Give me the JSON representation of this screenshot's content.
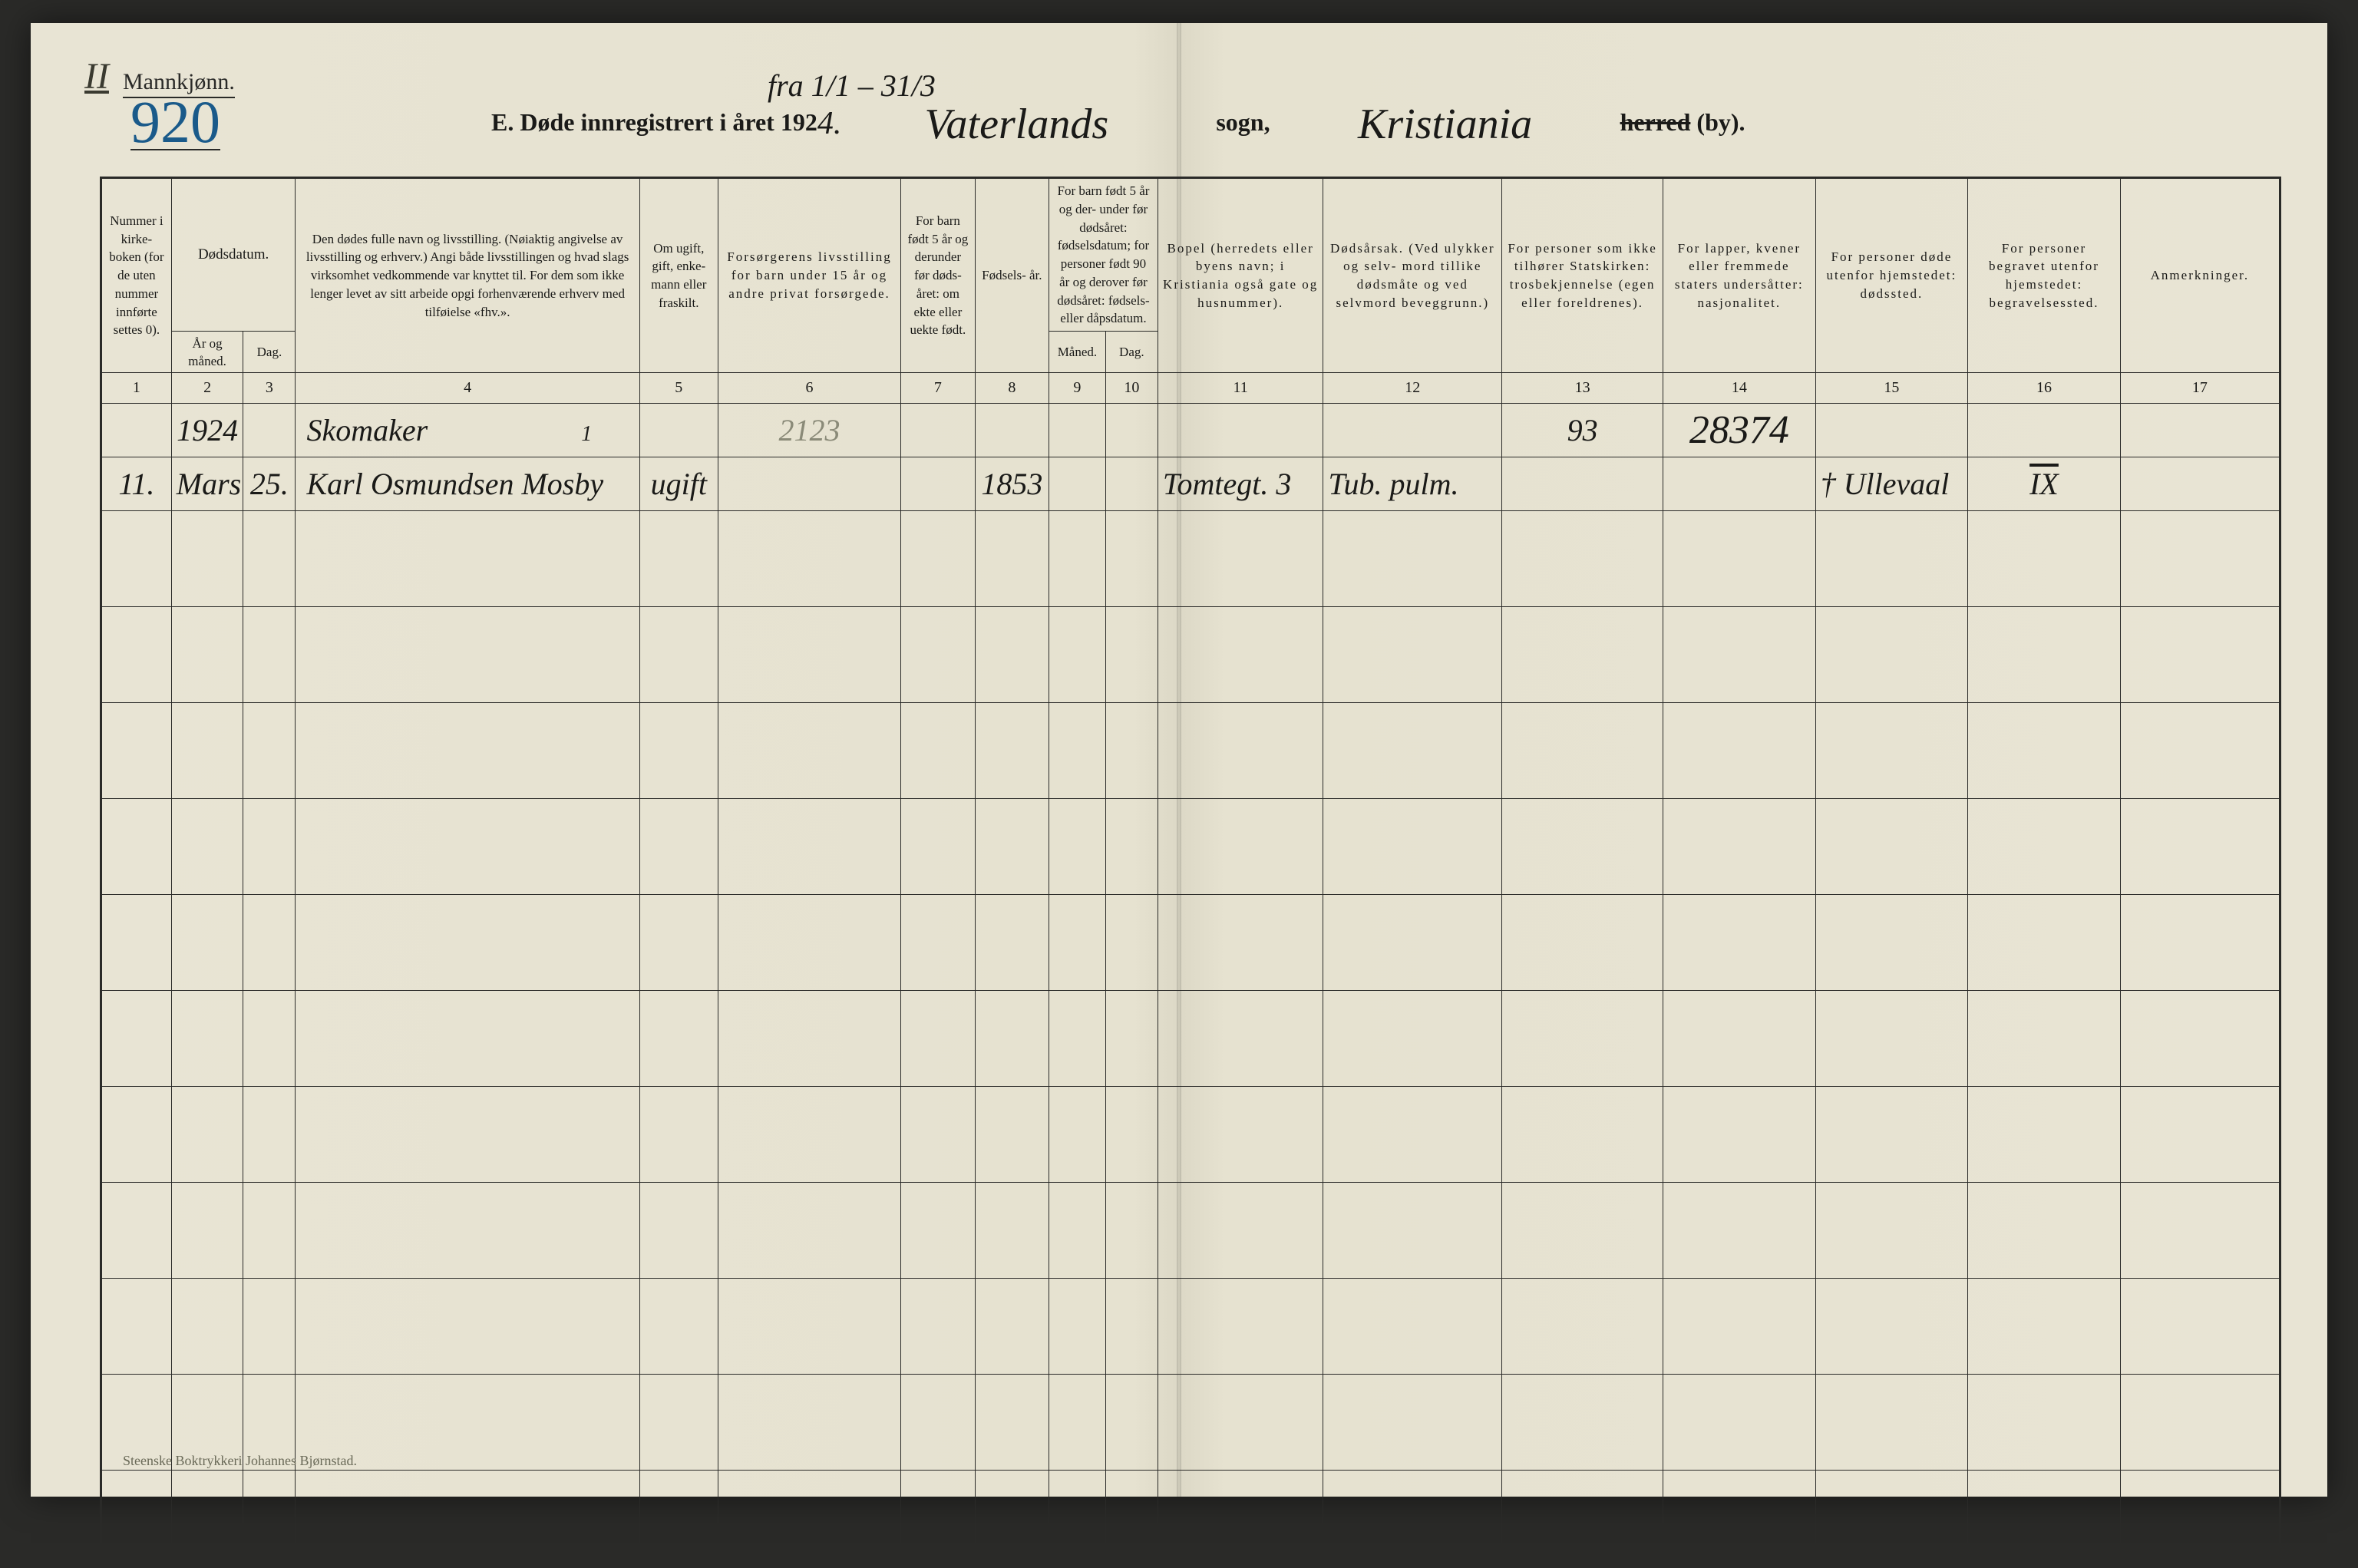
{
  "corner_mark": "II",
  "header": {
    "gender_label": "Mannkjønn.",
    "big_number": "920",
    "title_prefix": "E.  Døde innregistrert i året 192",
    "year_suffix": "4.",
    "date_range": "fra 1/1 – 31/3",
    "parish_hand": "Vaterlands",
    "sogn_label": "sogn,",
    "city_hand": "Kristiania",
    "herred_strike": "herred",
    "by_suffix": "(by)."
  },
  "columns": {
    "c1": "Nummer i kirke- boken (for de uten nummer innførte settes 0).",
    "c2": "Dødsdatum.",
    "c2a": "År og måned.",
    "c2b": "Dag.",
    "c4": "Den dødes fulle navn og livsstilling.\n(Nøiaktig angivelse av livsstilling og erhverv.)\nAngi både livsstillingen og hvad slags virksomhet vedkommende var knyttet til.\nFor dem som ikke lenger levet av sitt arbeide opgi forhenværende erhverv med tilføielse «fhv.».",
    "c5": "Om ugift, gift, enke- mann eller fraskilt.",
    "c6": "Forsørgerens\nlivsstilling\nfor barn under 15 år og andre privat forsørgede.",
    "c7": "For barn født 5 år og derunder før døds- året: om ekte eller uekte født.",
    "c8": "Fødsels- år.",
    "c9_10": "For barn født 5 år og der- under før dødsåret: fødselsdatum; for personer født 90 år og derover før dødsåret: fødsels- eller dåpsdatum.",
    "c9": "Måned.",
    "c10": "Dag.",
    "c11": "Bopel\n(herredets eller byens navn; i Kristiania også gate og husnummer).",
    "c12": "Dødsårsak.\n(Ved ulykker og selv- mord tillike dødsmåte og ved selvmord beveggrunn.)",
    "c13": "For personer som ikke tilhører Statskirken: trosbekjennelse (egen eller foreldrenes).",
    "c14": "For lapper, kvener eller fremmede staters undersåtter: nasjonalitet.",
    "c15": "For personer døde utenfor hjemstedet: dødssted.",
    "c16": "For personer begravet utenfor hjemstedet: begravelsessted.",
    "c17": "Anmerkninger."
  },
  "colnums": [
    "1",
    "2",
    "3",
    "4",
    "5",
    "6",
    "7",
    "8",
    "9",
    "10",
    "11",
    "12",
    "13",
    "14",
    "15",
    "16",
    "17"
  ],
  "widths_pct": [
    3.2,
    3.3,
    2.4,
    15.8,
    3.6,
    8.4,
    3.4,
    3.4,
    2.6,
    2.4,
    7.6,
    8.2,
    7.4,
    7.0,
    7.0,
    7.0,
    7.3
  ],
  "row1": {
    "c2a": "1924",
    "c4": "Skomaker",
    "c4_mark": "1",
    "c6": "2123",
    "c13": "93",
    "c14": "28374"
  },
  "row2": {
    "c1": "11.",
    "c2a": "Mars",
    "c2b": "25.",
    "c4": "Karl Osmundsen Mosby",
    "c5": "ugift",
    "c8": "1853",
    "c11": "Tomtegt. 3",
    "c12": "Tub. pulm.",
    "c15": "† Ullevaal",
    "c16": "IX"
  },
  "empty_rows": 11,
  "footer": "Steenske Boktrykkeri Johannes Bjørnstad.",
  "colors": {
    "paper": "#e8e4d4",
    "ink": "#1a1a18",
    "blue_ink": "#1a5a8a",
    "border": "#2a2a28",
    "faint": "#8a8a78"
  }
}
